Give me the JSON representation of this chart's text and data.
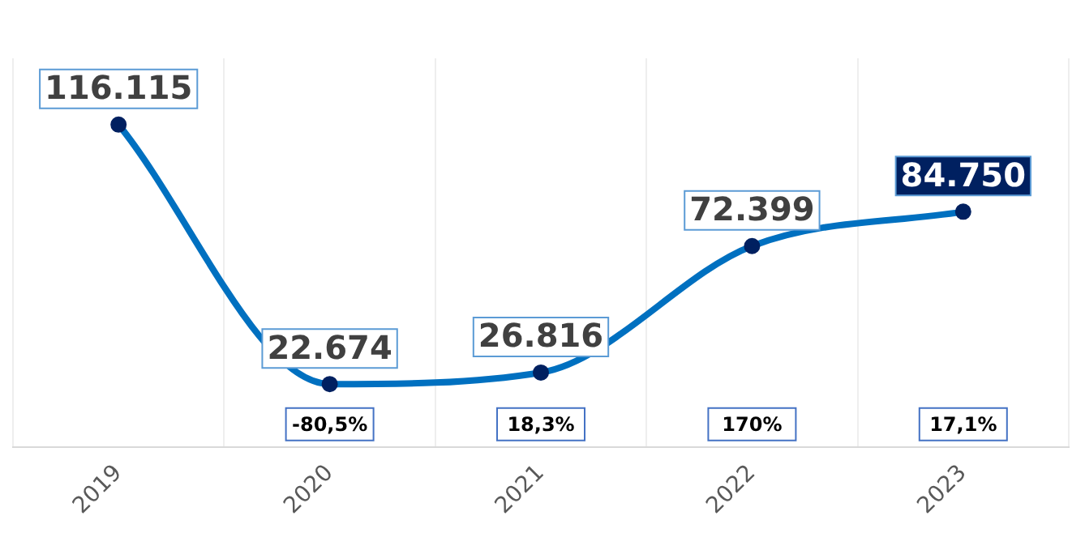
{
  "chart_data": {
    "type": "line",
    "categories": [
      "2019",
      "2020",
      "2021",
      "2022",
      "2023"
    ],
    "series": [
      {
        "color": "#0070c0",
        "values": [
          116115,
          22674,
          26816,
          72399,
          84750
        ],
        "value_labels": [
          "116.115",
          "22.674",
          "26.816",
          "72.399",
          "84.750"
        ]
      }
    ],
    "marker": "circle",
    "line_style": "solid",
    "grid": "x",
    "legend": false,
    "tick_labels": "x",
    "annotations": [
      "-80,5%",
      "18,3%",
      "170%",
      "17,1%"
    ]
  }
}
